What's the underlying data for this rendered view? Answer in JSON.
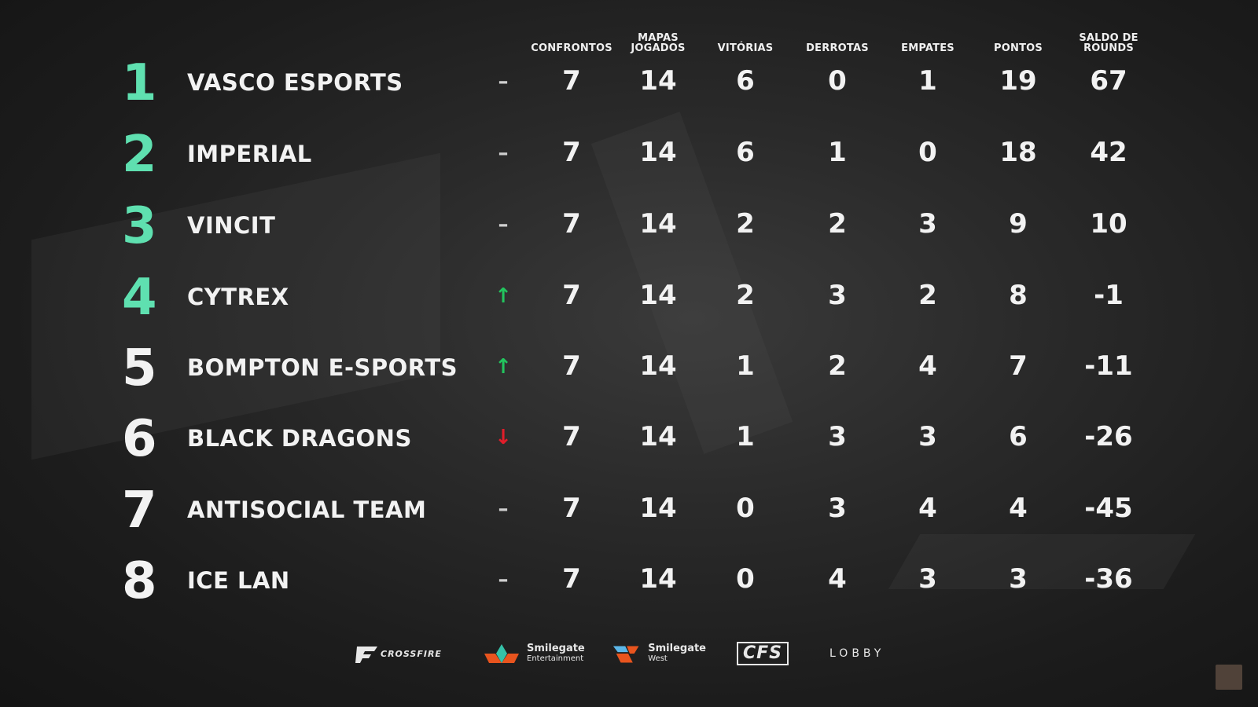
{
  "headers": {
    "confrontos": "CONFRONTOS",
    "mapas_1": "MAPAS",
    "mapas_2": "JOGADOS",
    "vitorias": "VITÓRIAS",
    "derrotas": "DERROTAS",
    "empates": "EMPATES",
    "pontos": "PONTOS",
    "saldo_1": "SALDO DE",
    "saldo_2": "ROUNDS"
  },
  "colors": {
    "rank_top3": "#5fe0b0",
    "rank_rest": "#f2f2f2",
    "up": "#22c55e",
    "down": "#e11d2a",
    "neutral": "#cfcfcf"
  },
  "rows": [
    {
      "rank": "1",
      "team": "VASCO ESPORTS",
      "trend": "–",
      "trend_type": "neutral",
      "confrontos": "7",
      "mapas": "14",
      "vitorias": "6",
      "derrotas": "0",
      "empates": "1",
      "pontos": "19",
      "saldo": "67"
    },
    {
      "rank": "2",
      "team": "IMPERIAL",
      "trend": "–",
      "trend_type": "neutral",
      "confrontos": "7",
      "mapas": "14",
      "vitorias": "6",
      "derrotas": "1",
      "empates": "0",
      "pontos": "18",
      "saldo": "42"
    },
    {
      "rank": "3",
      "team": "VINCIT",
      "trend": "–",
      "trend_type": "neutral",
      "confrontos": "7",
      "mapas": "14",
      "vitorias": "2",
      "derrotas": "2",
      "empates": "3",
      "pontos": "9",
      "saldo": "10"
    },
    {
      "rank": "4",
      "team": "CYTREX",
      "trend": "↑",
      "trend_type": "up",
      "confrontos": "7",
      "mapas": "14",
      "vitorias": "2",
      "derrotas": "3",
      "empates": "2",
      "pontos": "8",
      "saldo": "-1"
    },
    {
      "rank": "5",
      "team": "BOMPTON E-SPORTS",
      "trend": "↑",
      "trend_type": "up",
      "confrontos": "7",
      "mapas": "14",
      "vitorias": "1",
      "derrotas": "2",
      "empates": "4",
      "pontos": "7",
      "saldo": "-11"
    },
    {
      "rank": "6",
      "team": "BLACK DRAGONS",
      "trend": "↓",
      "trend_type": "down",
      "confrontos": "7",
      "mapas": "14",
      "vitorias": "1",
      "derrotas": "3",
      "empates": "3",
      "pontos": "6",
      "saldo": "-26"
    },
    {
      "rank": "7",
      "team": "ANTISOCIAL TEAM",
      "trend": "–",
      "trend_type": "neutral",
      "confrontos": "7",
      "mapas": "14",
      "vitorias": "0",
      "derrotas": "3",
      "empates": "4",
      "pontos": "4",
      "saldo": "-45"
    },
    {
      "rank": "8",
      "team": "ICE LAN",
      "trend": "–",
      "trend_type": "neutral",
      "confrontos": "7",
      "mapas": "14",
      "vitorias": "0",
      "derrotas": "4",
      "empates": "3",
      "pontos": "3",
      "saldo": "-36"
    }
  ],
  "sponsors": {
    "crossfire": "CROSSFIRE",
    "smilegate_ent_1": "Smilegate",
    "smilegate_ent_2": "Entertainment",
    "smilegate_west_1": "Smilegate",
    "smilegate_west_2": "West",
    "cfs": "CFS",
    "lobby": "LOBBY"
  }
}
